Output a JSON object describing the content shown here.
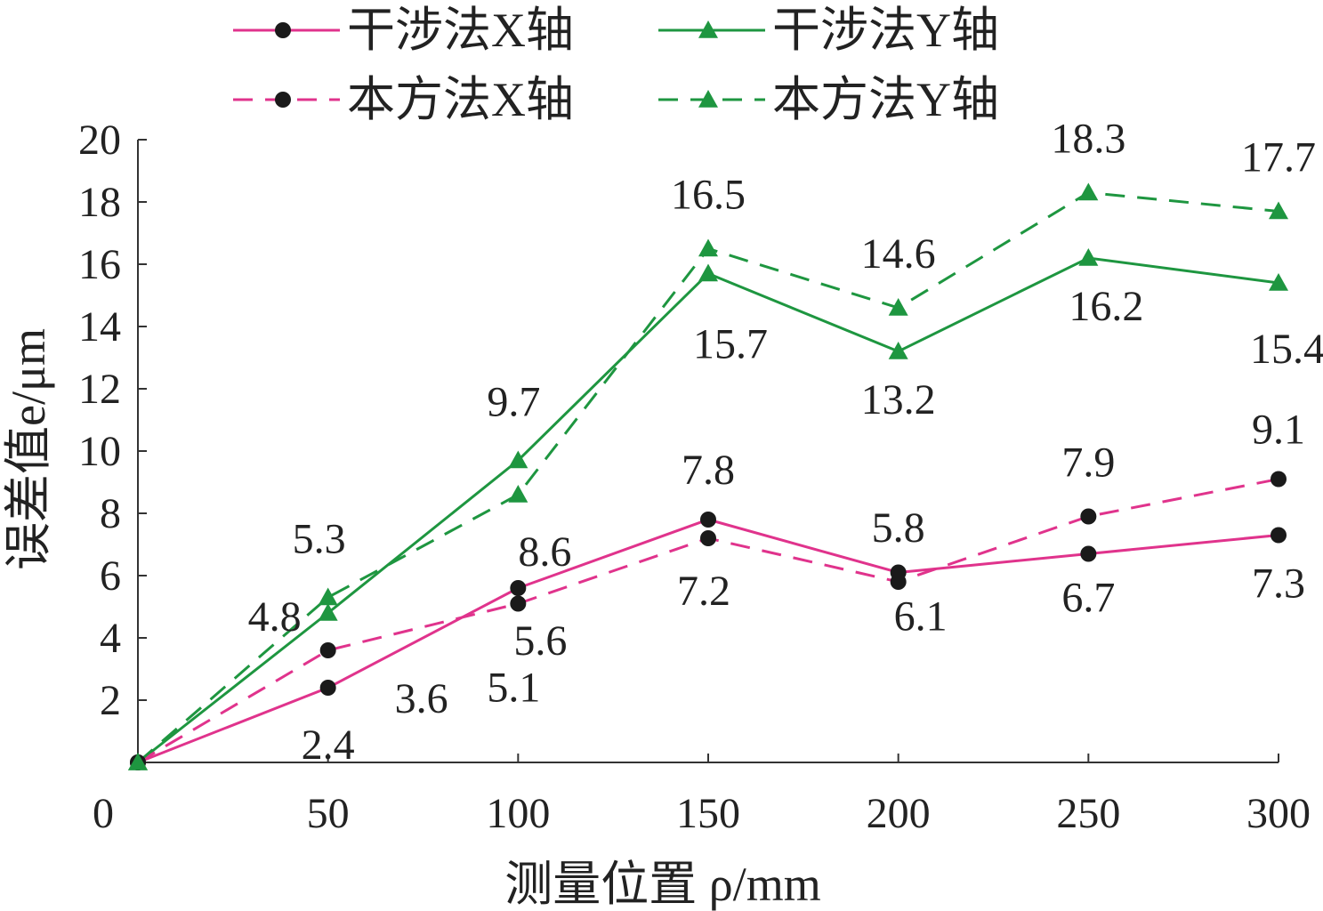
{
  "chart_data": {
    "type": "line",
    "title": "",
    "xlabel": "测量位置 ρ/mm",
    "ylabel": "误差值e/μm",
    "x": [
      0,
      50,
      100,
      150,
      200,
      250,
      300
    ],
    "xlim": [
      0,
      300
    ],
    "ylim": [
      0,
      20
    ],
    "x_ticks": [
      "0",
      "50",
      "100",
      "150",
      "200",
      "250",
      "300"
    ],
    "y_ticks": [
      "2",
      "4",
      "6",
      "8",
      "10",
      "12",
      "14",
      "16",
      "18",
      "20"
    ],
    "grid": false,
    "legend_position": "top",
    "series": [
      {
        "name": "干涉法X轴",
        "color": "#e0338c",
        "line": "solid",
        "marker": "circle",
        "values": [
          0,
          2.4,
          5.6,
          7.8,
          6.1,
          6.7,
          7.3
        ],
        "labels": [
          "",
          "2.4",
          "5.6",
          "7.8",
          "6.1",
          "6.7",
          "7.3"
        ]
      },
      {
        "name": "干涉法Y轴",
        "color": "#1e9640",
        "line": "solid",
        "marker": "triangle",
        "values": [
          0,
          4.8,
          9.7,
          15.7,
          13.2,
          16.2,
          15.4
        ],
        "labels": [
          "",
          "4.8",
          "9.7",
          "15.7",
          "13.2",
          "16.2",
          "15.4"
        ]
      },
      {
        "name": "本方法X轴",
        "color": "#e0338c",
        "line": "dashed",
        "marker": "circle",
        "values": [
          0,
          3.6,
          5.1,
          7.2,
          5.8,
          7.9,
          9.1
        ],
        "labels": [
          "",
          "3.6",
          "5.1",
          "7.2",
          "5.8",
          "7.9",
          "9.1"
        ]
      },
      {
        "name": "本方法Y轴",
        "color": "#1e9640",
        "line": "dashed",
        "marker": "triangle",
        "values": [
          0,
          5.3,
          8.6,
          16.5,
          14.6,
          18.3,
          17.7
        ],
        "labels": [
          "",
          "5.3",
          "8.6",
          "16.5",
          "14.6",
          "18.3",
          "17.7"
        ]
      }
    ]
  }
}
